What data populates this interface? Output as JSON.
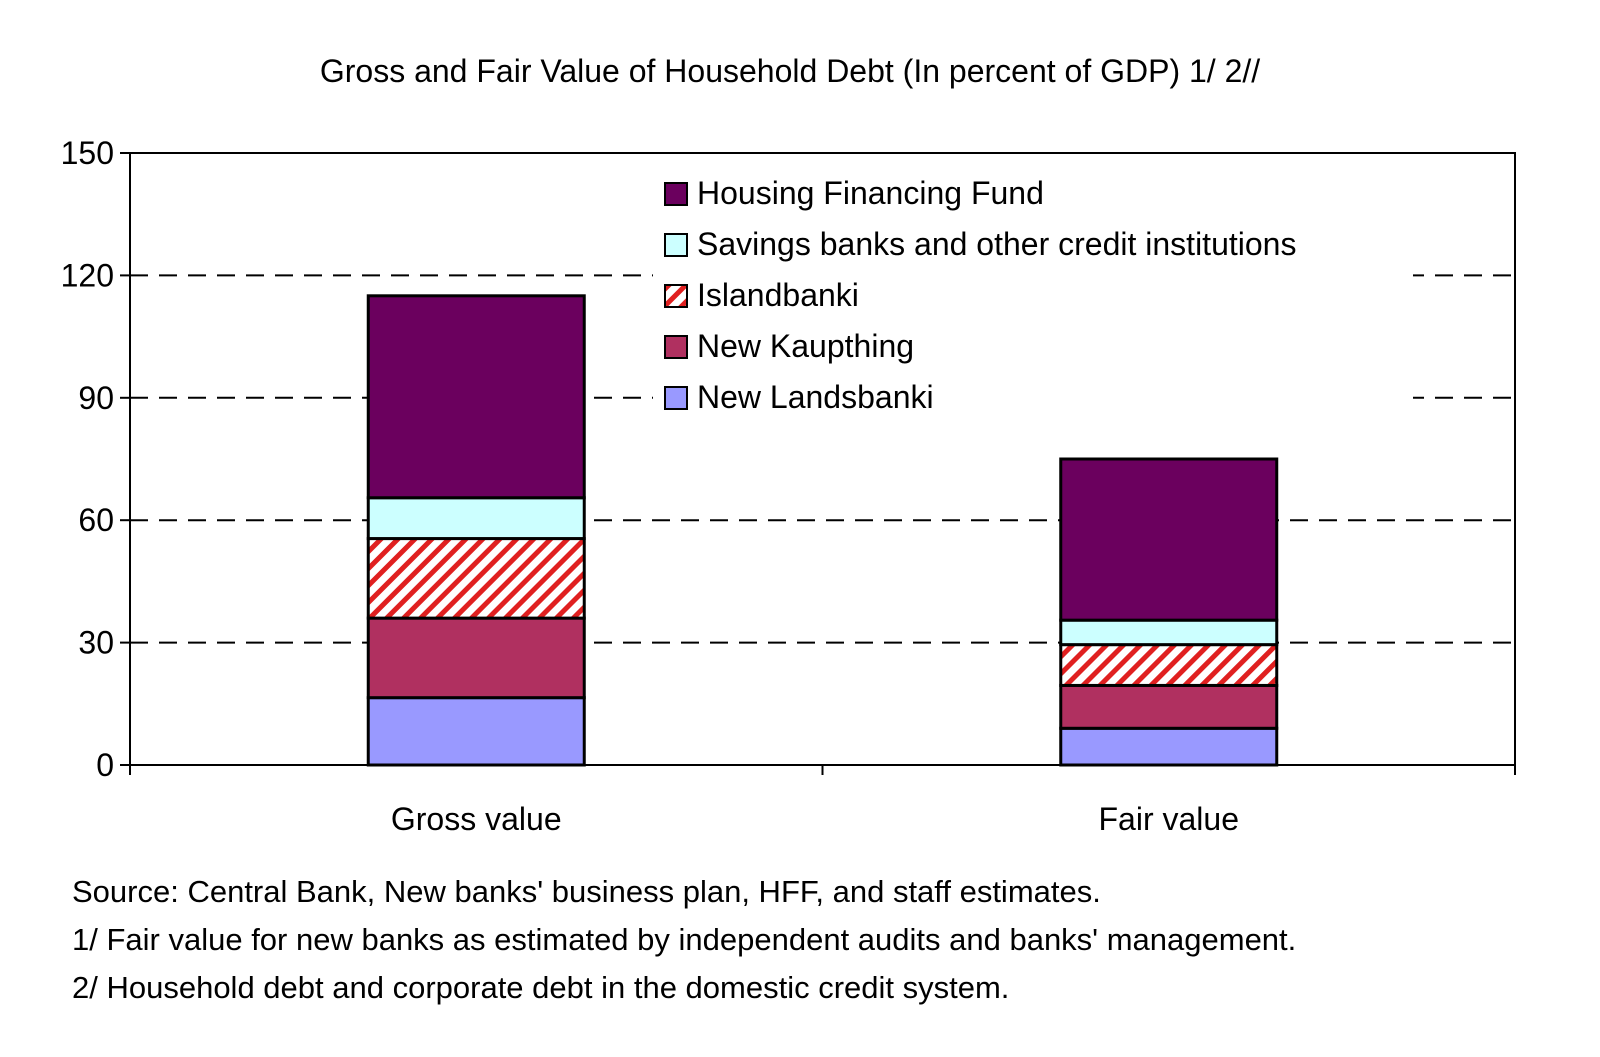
{
  "chart_data": {
    "type": "bar",
    "stacked": true,
    "title": "Gross and Fair Value of Household Debt (In percent of GDP) 1/ 2//",
    "xlabel": "",
    "ylabel": "",
    "categories": [
      "Gross value",
      "Fair value"
    ],
    "ylim": [
      0,
      150
    ],
    "yticks": [
      0,
      30,
      60,
      90,
      120,
      150
    ],
    "gridlines": "dashed, at 30, 60, 90, 120",
    "legend_position": "top-center inside plot",
    "series": [
      {
        "name": "New Landsbanki",
        "values": [
          16.5,
          9
        ],
        "color": "#9999ff",
        "pattern": "solid"
      },
      {
        "name": "New Kaupthing",
        "values": [
          19.5,
          10.5
        ],
        "color": "#b03060",
        "pattern": "solid"
      },
      {
        "name": "Islandbanki",
        "values": [
          19.5,
          10
        ],
        "color": "#e02020",
        "pattern": "diagonal-hatch"
      },
      {
        "name": "Savings banks and other credit institutions",
        "values": [
          10,
          6
        ],
        "color": "#ccffff",
        "pattern": "solid"
      },
      {
        "name": "Housing Financing Fund",
        "values": [
          49.5,
          39.5
        ],
        "color": "#6b005e",
        "pattern": "solid"
      }
    ]
  },
  "notes": {
    "source": "Source: Central Bank, New banks' business plan, HFF, and staff estimates.",
    "note1": "1/ Fair value for new banks as estimated by independent audits and banks' management.",
    "note2": "2/ Household debt and corporate debt in the domestic credit system."
  }
}
